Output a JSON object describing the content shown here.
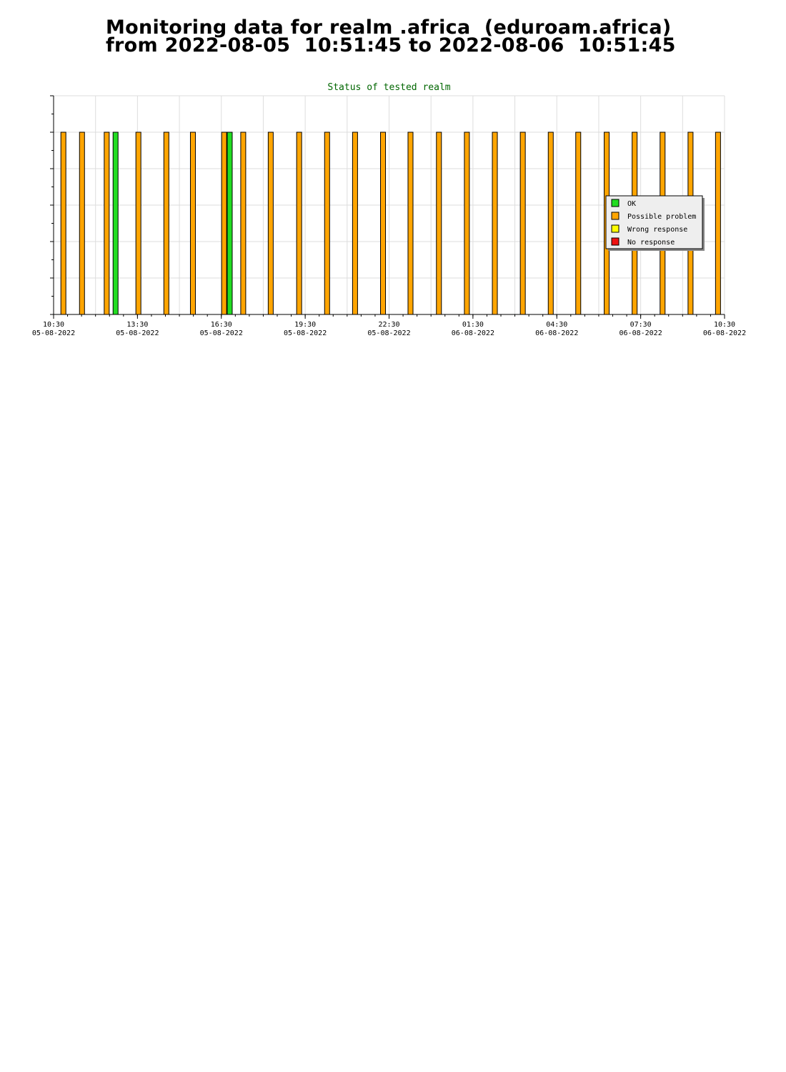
{
  "page": {
    "title_line1": "Monitoring data for realm .africa  (eduroam.africa)",
    "title_line2": "from 2022-08-05  10:51:45 to 2022-08-06  10:51:45"
  },
  "chart_data": {
    "type": "bar",
    "title": "Status of tested realm",
    "xlabel": "",
    "ylabel": "",
    "grid": true,
    "legend_position": "right",
    "colors": {
      "OK": "#22dd22",
      "Possible problem": "#ffa500",
      "Wrong response": "#ffff00",
      "No response": "#ee1111",
      "title": "#006600",
      "grid": "#dddddd"
    },
    "legend": [
      "OK",
      "Possible problem",
      "Wrong response",
      "No response"
    ],
    "x_ticks": [
      {
        "time": "10:30",
        "date": "05-08-2022"
      },
      {
        "time": "13:30",
        "date": "05-08-2022"
      },
      {
        "time": "16:30",
        "date": "05-08-2022"
      },
      {
        "time": "19:30",
        "date": "05-08-2022"
      },
      {
        "time": "22:30",
        "date": "05-08-2022"
      },
      {
        "time": "01:30",
        "date": "06-08-2022"
      },
      {
        "time": "04:30",
        "date": "06-08-2022"
      },
      {
        "time": "07:30",
        "date": "06-08-2022"
      },
      {
        "time": "10:30",
        "date": "06-08-2022"
      }
    ],
    "x_range": [
      "2022-08-05 10:30",
      "2022-08-06 10:30"
    ],
    "ylim": [
      0,
      6
    ],
    "series": [
      {
        "name": "Possible problem",
        "points": [
          {
            "t": "2022-08-05 10:51",
            "y": 5
          },
          {
            "t": "2022-08-05 11:31",
            "y": 5
          },
          {
            "t": "2022-08-05 12:24",
            "y": 5
          },
          {
            "t": "2022-08-05 13:32",
            "y": 5
          },
          {
            "t": "2022-08-05 14:32",
            "y": 5
          },
          {
            "t": "2022-08-05 15:29",
            "y": 5
          },
          {
            "t": "2022-08-05 16:36",
            "y": 5
          },
          {
            "t": "2022-08-05 17:17",
            "y": 5
          },
          {
            "t": "2022-08-05 18:16",
            "y": 5
          },
          {
            "t": "2022-08-05 19:17",
            "y": 5
          },
          {
            "t": "2022-08-05 20:17",
            "y": 5
          },
          {
            "t": "2022-08-05 21:17",
            "y": 5
          },
          {
            "t": "2022-08-05 22:17",
            "y": 5
          },
          {
            "t": "2022-08-05 23:16",
            "y": 5
          },
          {
            "t": "2022-08-06 00:17",
            "y": 5
          },
          {
            "t": "2022-08-06 01:17",
            "y": 5
          },
          {
            "t": "2022-08-06 02:17",
            "y": 5
          },
          {
            "t": "2022-08-06 03:17",
            "y": 5
          },
          {
            "t": "2022-08-06 04:17",
            "y": 5
          },
          {
            "t": "2022-08-06 05:16",
            "y": 5
          },
          {
            "t": "2022-08-06 06:17",
            "y": 5
          },
          {
            "t": "2022-08-06 07:17",
            "y": 5
          },
          {
            "t": "2022-08-06 08:17",
            "y": 5
          },
          {
            "t": "2022-08-06 09:17",
            "y": 5
          },
          {
            "t": "2022-08-06 10:16",
            "y": 5
          }
        ]
      },
      {
        "name": "OK",
        "points": [
          {
            "t": "2022-08-05 12:43",
            "y": 5
          },
          {
            "t": "2022-08-05 16:48",
            "y": 5
          }
        ]
      },
      {
        "name": "Wrong response",
        "points": []
      },
      {
        "name": "No response",
        "points": []
      }
    ]
  }
}
